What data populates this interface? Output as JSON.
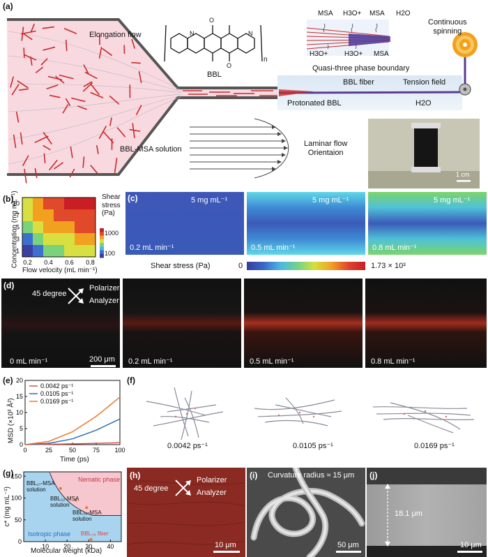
{
  "panel_a": {
    "label": "(a)",
    "elongation_flow": "Elongation flow",
    "bbl_name": "BBL",
    "subscript_n": "n",
    "qtpb": "Quasi-three phase boundary",
    "msa_1": "MSA",
    "h3o_1": "H3O+",
    "msa_2": "MSA",
    "h2o_top": "H2O",
    "h3o_2": "H3O+",
    "h3o_3": "H3O+",
    "msa_3": "MSA",
    "continuous_spinning": "Continuous\nspinning",
    "bbl_fiber": "BBL fiber",
    "tension_field": "Tension field",
    "protonated_bbl": "Protonated BBL",
    "h2o_bottom": "H2O",
    "bbl_msa_solution": "BBL-MSA solution",
    "laminar_flow": "Laminar flow\nOrientaion",
    "photo_scale": "1 cm"
  },
  "panel_b": {
    "label": "(b)",
    "ylabel": "Concentration (mg mL⁻¹)",
    "xlabel": "Flow velocity (mL min⁻¹)",
    "colorbar_title": "Shear stress (Pa)",
    "colorbar_ticks": [
      "1000",
      "100"
    ],
    "chart_data": {
      "type": "heatmap",
      "x": [
        0.2,
        0.3,
        0.4,
        0.5,
        0.6,
        0.7,
        0.8
      ],
      "y": [
        1,
        3,
        5,
        7,
        10
      ],
      "x_ticks": [
        "0.2",
        "0.4",
        "0.6",
        "0.8"
      ],
      "y_ticks": [
        "1",
        "3",
        "5",
        "7",
        "10"
      ],
      "values": [
        [
          80,
          150,
          250,
          330,
          420,
          480,
          500
        ],
        [
          150,
          260,
          380,
          470,
          540,
          600,
          620
        ],
        [
          260,
          420,
          600,
          720,
          830,
          900,
          950
        ],
        [
          380,
          620,
          850,
          1000,
          1150,
          1250,
          1300
        ],
        [
          500,
          850,
          1150,
          1350,
          1550,
          1650,
          1730
        ]
      ],
      "colorscale": [
        "#3a3fa0",
        "#3c6fd0",
        "#48b8e0",
        "#7ad27a",
        "#d7e040",
        "#f2a020",
        "#e04a2a",
        "#c81e24"
      ]
    }
  },
  "panel_c": {
    "label": "(c)",
    "conc": "5 mg mL⁻¹",
    "flows": [
      "0.2 mL min⁻¹",
      "0.5 mL min⁻¹",
      "0.8 mL min⁻¹"
    ],
    "colorbar_title": "Shear stress (Pa)",
    "colorbar_min": "0",
    "colorbar_max": "1.73 × 10³"
  },
  "panel_d": {
    "label": "(d)",
    "angle": "45 degree",
    "polarizer": "Polarizer",
    "analyzer": "Analyzer",
    "flows": [
      "0 mL min⁻¹",
      "0.2 mL min⁻¹",
      "0.5 mL min⁻¹",
      "0.8 mL min⁻¹"
    ],
    "scale": "200 μm"
  },
  "panel_e": {
    "label": "(e)",
    "chart_data": {
      "type": "line",
      "xlabel": "Time (ps)",
      "ylabel": "MSD (×10³ Å²)",
      "xlim": [
        0,
        100
      ],
      "ylim": [
        0,
        20
      ],
      "x_ticks": [
        "0",
        "25",
        "50",
        "75",
        "100"
      ],
      "y_ticks": [
        "0",
        "5",
        "10",
        "15",
        "20"
      ],
      "legend_position": "top-left",
      "series": [
        {
          "name": "0.0042 ps⁻¹",
          "color": "#d9534f",
          "x": [
            0,
            25,
            50,
            75,
            100
          ],
          "values": [
            0,
            0.1,
            0.25,
            0.4,
            0.6
          ]
        },
        {
          "name": "0.0105 ps⁻¹",
          "color": "#2f6db5",
          "x": [
            0,
            25,
            50,
            75,
            100
          ],
          "values": [
            0,
            0.4,
            1.8,
            4.5,
            8.0
          ]
        },
        {
          "name": "0.0169 ps⁻¹",
          "color": "#e8782a",
          "x": [
            0,
            25,
            50,
            75,
            100
          ],
          "values": [
            0,
            1.0,
            4.0,
            8.8,
            14.8
          ]
        }
      ]
    }
  },
  "panel_f": {
    "label": "(f)",
    "rates": [
      "0.0042 ps⁻¹",
      "0.0105 ps⁻¹",
      "0.0169 ps⁻¹"
    ]
  },
  "panel_g": {
    "label": "(g)",
    "chart_data": {
      "type": "scatter",
      "xlabel": "Molecular weight (kDa)",
      "ylabel": "c* (mg mL⁻¹)",
      "xlim": [
        0,
        45
      ],
      "ylim": [
        0,
        160
      ],
      "x_ticks": [
        "10",
        "20",
        "30",
        "40"
      ],
      "y_ticks": [
        "0",
        "50",
        "100",
        "150"
      ],
      "nematic_label": "Nematic phase",
      "isotropic_label": "Isotropic phase",
      "points": [
        {
          "label": "BBL₁₇-MSA solution",
          "x": 17,
          "y": 122
        },
        {
          "label": "BBL₂₂-MSA solution",
          "x": 24,
          "y": 95
        },
        {
          "label": "BBL₃₈-MSA solution",
          "x": 29,
          "y": 78
        },
        {
          "label": "BBL₃₈ fiber",
          "x": 31,
          "y": 5
        }
      ]
    }
  },
  "panel_h": {
    "label": "(h)",
    "angle": "45 degree",
    "polarizer": "Polarizer",
    "analyzer": "Analyzer",
    "scale": "10 μm"
  },
  "panel_i": {
    "label": "(i)",
    "curvature": "Curvature radius ≈ 15 μm",
    "scale": "50 μm"
  },
  "panel_j": {
    "label": "(j)",
    "thickness": "18.1 μm",
    "scale": "10 μm"
  }
}
